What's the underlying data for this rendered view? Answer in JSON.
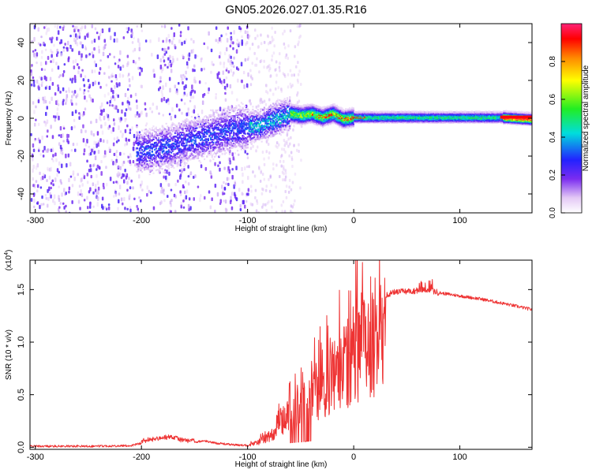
{
  "title": "GN05.2026.027.01.35.R16",
  "top_panel": {
    "chart_data": {
      "type": "heatmap",
      "xlabel": "Height of straight line (km)",
      "ylabel": "Frequency (Hz)",
      "xlim": [
        -305,
        168
      ],
      "ylim": [
        -50,
        50
      ],
      "x_ticks": [
        -300,
        -200,
        -100,
        0,
        100
      ],
      "y_ticks": [
        -40,
        -20,
        0,
        20,
        40
      ],
      "z_range": [
        0,
        1
      ],
      "ridge": [
        {
          "x": -200,
          "y": -17
        },
        {
          "x": -180,
          "y": -15
        },
        {
          "x": -160,
          "y": -12
        },
        {
          "x": -140,
          "y": -9
        },
        {
          "x": -120,
          "y": -6
        },
        {
          "x": -100,
          "y": -4
        },
        {
          "x": -90,
          "y": -3
        },
        {
          "x": -80,
          "y": -1
        },
        {
          "x": -70,
          "y": 1
        },
        {
          "x": -60,
          "y": 3
        },
        {
          "x": -50,
          "y": 2
        },
        {
          "x": -40,
          "y": 3
        },
        {
          "x": -30,
          "y": 1
        },
        {
          "x": -20,
          "y": 3
        },
        {
          "x": -10,
          "y": 0
        },
        {
          "x": 0,
          "y": 1
        },
        {
          "x": 20,
          "y": 1
        },
        {
          "x": 60,
          "y": 1
        },
        {
          "x": 100,
          "y": 1
        },
        {
          "x": 140,
          "y": 1
        },
        {
          "x": 168,
          "y": 0
        }
      ]
    }
  },
  "colorbar": {
    "label": "Normalized spectral amplitude",
    "ticks": [
      "0.0",
      "0.2",
      "0.4",
      "0.6",
      "0.8"
    ],
    "tick_values": [
      0,
      0.2,
      0.4,
      0.6,
      0.8
    ],
    "range": [
      0,
      1
    ]
  },
  "bottom_panel": {
    "chart_data": {
      "type": "line",
      "xlabel": "Height of straight line (km)",
      "ylabel": "SNR (10 * v/v)",
      "scale_label": "(x10",
      "scale_exp": "4",
      "scale_close": ")",
      "xlim": [
        -305,
        168
      ],
      "ylim": [
        -0.02,
        1.78
      ],
      "x_ticks": [
        -300,
        -200,
        -100,
        0,
        100
      ],
      "y_ticks": [
        0.0,
        0.5,
        1.0,
        1.5
      ],
      "y_tick_labels": [
        "0.0",
        "0.5",
        "1.0",
        "1.5"
      ],
      "color": "#ee3333",
      "series": [
        {
          "x": [
            -305,
            -250,
            -210,
            -195,
            -185,
            -170,
            -160,
            -150,
            -140,
            -130,
            -110,
            -100,
            -90,
            -80,
            -70,
            -60,
            -50,
            -40,
            -30,
            -20,
            -10,
            0,
            10,
            20,
            30,
            40,
            60,
            70,
            80,
            100,
            120,
            140,
            168
          ],
          "y": [
            0.01,
            0.01,
            0.015,
            0.05,
            0.06,
            0.08,
            0.04,
            0.05,
            0.06,
            0.04,
            0.02,
            0.02,
            0.06,
            0.12,
            0.28,
            0.42,
            0.5,
            0.6,
            0.75,
            0.88,
            1.0,
            1.12,
            1.25,
            1.36,
            1.45,
            1.48,
            1.49,
            1.5,
            1.47,
            1.44,
            1.41,
            1.37,
            1.31
          ]
        }
      ]
    }
  }
}
